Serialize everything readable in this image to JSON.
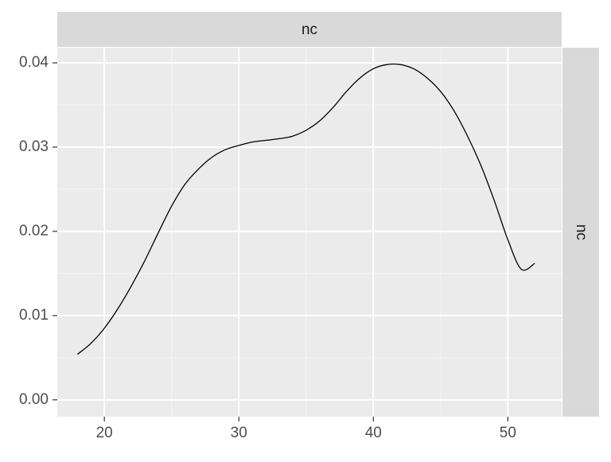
{
  "chart_data": {
    "type": "line",
    "title": "",
    "xlabel": "",
    "ylabel": "",
    "facet_top_label": "nc",
    "facet_right_label": "nc",
    "xlim": [
      16.5,
      54
    ],
    "ylim": [
      -0.002,
      0.0418
    ],
    "x_ticks": [
      20,
      30,
      40,
      50
    ],
    "x_tick_labels": [
      "20",
      "30",
      "40",
      "50"
    ],
    "y_ticks": [
      0.0,
      0.01,
      0.02,
      0.03,
      0.04
    ],
    "y_tick_labels": [
      "0.00",
      "0.01",
      "0.02",
      "0.03",
      "0.04"
    ],
    "grid": true,
    "legend": "none",
    "series": [
      {
        "color": "#000000",
        "x": [
          18,
          19,
          20,
          21,
          22,
          23,
          24,
          25,
          26,
          27,
          28,
          29,
          30,
          31,
          32,
          33,
          34,
          35,
          36,
          37,
          38,
          39,
          40,
          41,
          42,
          43,
          44,
          45,
          46,
          47,
          48,
          49,
          50,
          51,
          52
        ],
        "y": [
          0.0054,
          0.0067,
          0.0085,
          0.0108,
          0.0135,
          0.0165,
          0.0198,
          0.023,
          0.0256,
          0.0274,
          0.0288,
          0.0297,
          0.0302,
          0.0306,
          0.0308,
          0.031,
          0.0313,
          0.032,
          0.0331,
          0.0347,
          0.0366,
          0.0382,
          0.0393,
          0.0398,
          0.0398,
          0.0393,
          0.0382,
          0.0366,
          0.0343,
          0.0313,
          0.0278,
          0.0236,
          0.019,
          0.0155,
          0.0162
        ]
      }
    ]
  },
  "colors": {
    "panel_background": "#ebebeb",
    "strip_background": "#d9d9d9",
    "grid_major": "#ffffff",
    "grid_minor": "#f5f5f5",
    "axis_text": "#4d4d4d",
    "strip_text": "#1a1a1a",
    "line": "#000000"
  }
}
